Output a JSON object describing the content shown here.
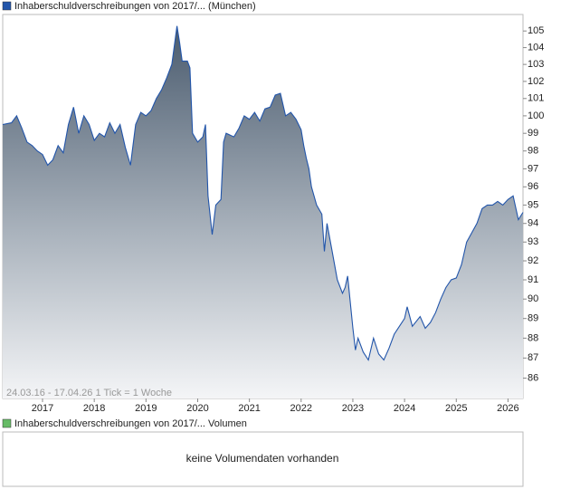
{
  "chart_data": {
    "type": "line",
    "annotation": "24.03.16 - 17.04.26   1 Tick = 1 Woche",
    "log_scale": true,
    "xlim": [
      2016.23,
      2026.29
    ],
    "xticks": [
      2017,
      2018,
      2019,
      2020,
      2021,
      2022,
      2023,
      2024,
      2025,
      2026
    ],
    "ylim": [
      85,
      106
    ],
    "yticks": [
      86,
      87,
      88,
      89,
      90,
      91,
      92,
      93,
      94,
      95,
      96,
      97,
      98,
      99,
      100,
      101,
      102,
      103,
      104,
      105
    ],
    "x": [
      2016.23,
      2016.4,
      2016.5,
      2016.6,
      2016.7,
      2016.8,
      2016.9,
      2017.0,
      2017.1,
      2017.2,
      2017.3,
      2017.4,
      2017.5,
      2017.6,
      2017.7,
      2017.8,
      2017.9,
      2018.0,
      2018.1,
      2018.2,
      2018.3,
      2018.4,
      2018.5,
      2018.6,
      2018.7,
      2018.8,
      2018.9,
      2019.0,
      2019.1,
      2019.2,
      2019.3,
      2019.4,
      2019.5,
      2019.6,
      2019.65,
      2019.7,
      2019.8,
      2019.85,
      2019.9,
      2020.0,
      2020.1,
      2020.15,
      2020.2,
      2020.28,
      2020.35,
      2020.45,
      2020.5,
      2020.55,
      2020.7,
      2020.8,
      2020.9,
      2021.0,
      2021.1,
      2021.2,
      2021.3,
      2021.4,
      2021.5,
      2021.6,
      2021.7,
      2021.8,
      2021.9,
      2022.0,
      2022.05,
      2022.1,
      2022.15,
      2022.2,
      2022.3,
      2022.4,
      2022.45,
      2022.5,
      2022.6,
      2022.7,
      2022.8,
      2022.85,
      2022.9,
      2023.0,
      2023.05,
      2023.1,
      2023.2,
      2023.3,
      2023.4,
      2023.5,
      2023.6,
      2023.7,
      2023.8,
      2023.9,
      2024.0,
      2024.05,
      2024.15,
      2024.3,
      2024.4,
      2024.5,
      2024.6,
      2024.7,
      2024.8,
      2024.9,
      2025.0,
      2025.1,
      2025.2,
      2025.3,
      2025.4,
      2025.5,
      2025.6,
      2025.7,
      2025.8,
      2025.9,
      2026.0,
      2026.1,
      2026.2,
      2026.29
    ],
    "series": [
      {
        "name": "Inhaberschuldverschreibungen von 2017/... (München)",
        "color": "#2255aa",
        "values": [
          99.5,
          99.6,
          100.0,
          99.3,
          98.5,
          98.3,
          98.0,
          97.8,
          97.2,
          97.5,
          98.3,
          97.9,
          99.5,
          100.5,
          99.0,
          100.0,
          99.5,
          98.6,
          99.0,
          98.8,
          99.6,
          99.0,
          99.5,
          98.2,
          97.2,
          99.5,
          100.2,
          100.0,
          100.3,
          101.0,
          101.5,
          102.2,
          103.0,
          105.3,
          104.3,
          103.2,
          103.2,
          102.8,
          99.0,
          98.5,
          98.8,
          99.5,
          95.5,
          93.4,
          95.0,
          95.3,
          98.5,
          99.0,
          98.8,
          99.3,
          100.0,
          99.8,
          100.2,
          99.7,
          100.4,
          100.5,
          101.2,
          101.3,
          100.0,
          100.2,
          99.8,
          99.2,
          98.3,
          97.6,
          97.0,
          96.0,
          95.0,
          94.5,
          92.5,
          94.0,
          92.5,
          91.0,
          90.3,
          90.6,
          91.2,
          88.5,
          87.4,
          88.0,
          87.3,
          86.9,
          88.0,
          87.2,
          86.9,
          87.5,
          88.2,
          88.6,
          89.0,
          89.6,
          88.6,
          89.1,
          88.5,
          88.8,
          89.3,
          90.0,
          90.6,
          91.0,
          91.1,
          91.8,
          93.0,
          93.5,
          94.0,
          94.8,
          95.0,
          95.0,
          95.2,
          95.0,
          95.3,
          95.5,
          94.2,
          94.6
        ]
      }
    ]
  },
  "volume_panel": {
    "legend": "Inhaberschuldverschreibungen von 2017/... Volumen",
    "color": "#66bb66",
    "message": "keine Volumendaten vorhanden"
  }
}
